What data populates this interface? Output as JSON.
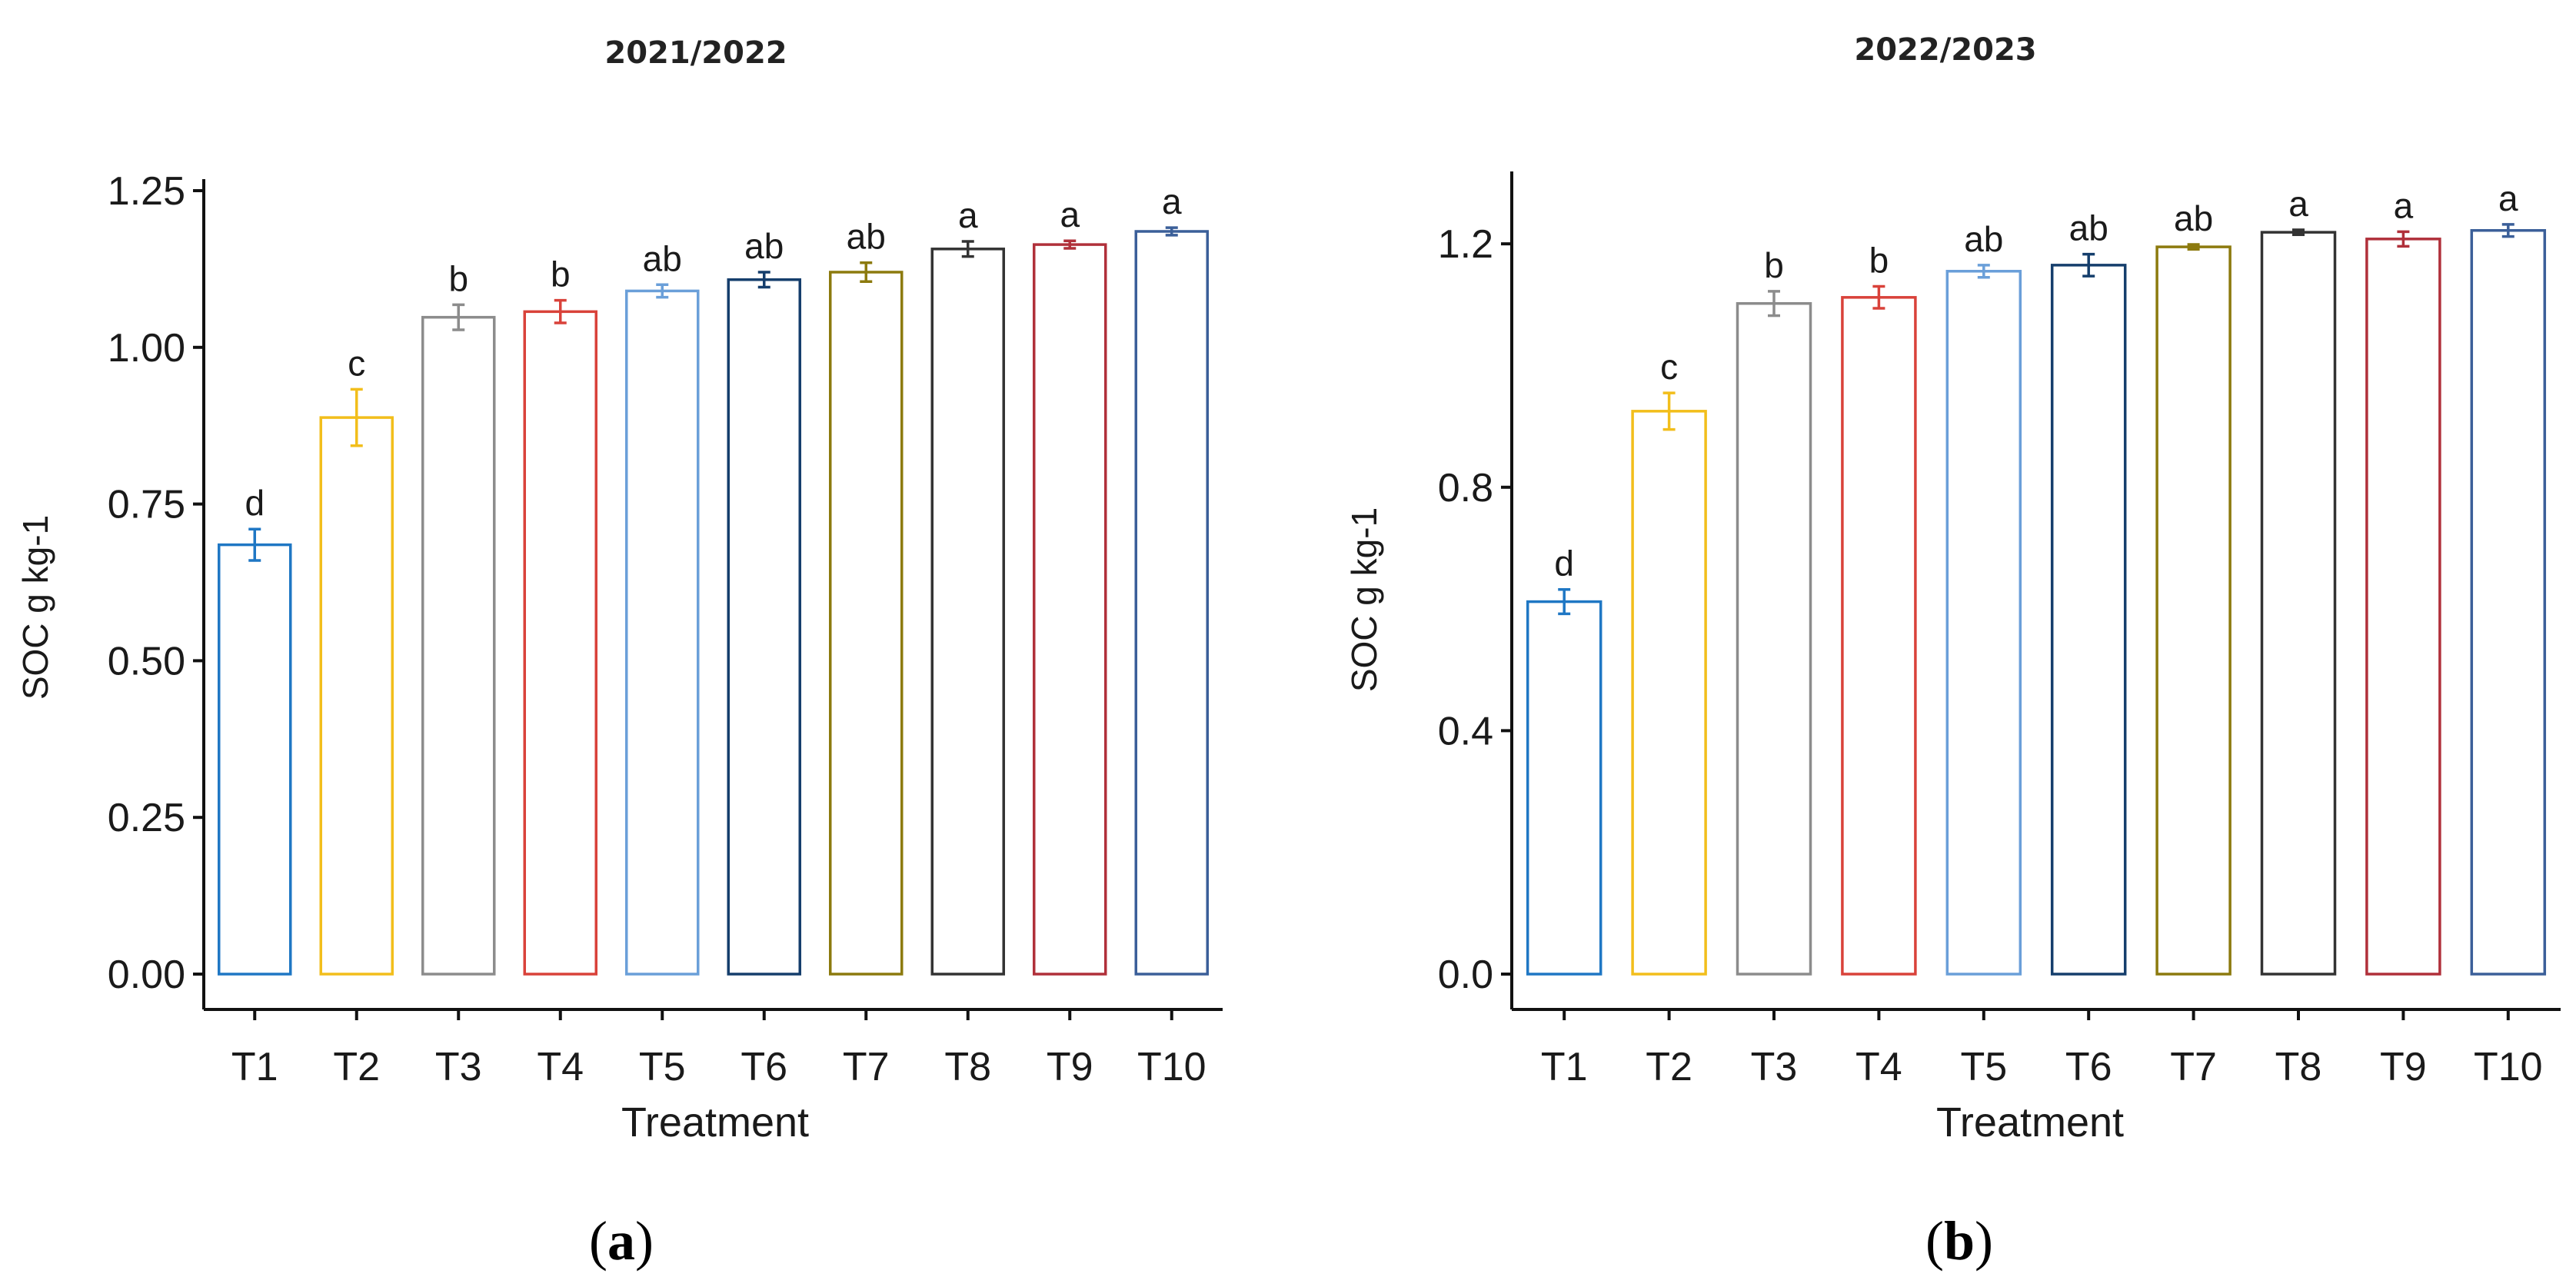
{
  "chart_data": [
    {
      "type": "bar",
      "title": "2021/2022",
      "panel_label_open": "(",
      "panel_label": "a",
      "panel_label_close": ")",
      "xlabel": "Treatment",
      "ylabel": "SOC g kg-1",
      "ylim": [
        0,
        1.25
      ],
      "yticks": [
        "0.00",
        "0.25",
        "0.50",
        "0.75",
        "1.00",
        "1.25"
      ],
      "categories": [
        "T1",
        "T2",
        "T3",
        "T4",
        "T5",
        "T6",
        "T7",
        "T8",
        "T9",
        "T10"
      ],
      "values": [
        0.685,
        0.888,
        1.048,
        1.057,
        1.09,
        1.108,
        1.12,
        1.157,
        1.164,
        1.185
      ],
      "errors": [
        0.025,
        0.045,
        0.02,
        0.018,
        0.01,
        0.012,
        0.015,
        0.012,
        0.006,
        0.006
      ],
      "letters": [
        "d",
        "c",
        "b",
        "b",
        "ab",
        "ab",
        "ab",
        "a",
        "a",
        "a"
      ]
    },
    {
      "type": "bar",
      "title": "2022/2023",
      "panel_label_open": "(",
      "panel_label": "b",
      "panel_label_close": ")",
      "xlabel": "Treatment",
      "ylabel": "SOC g kg-1",
      "ylim": [
        0,
        1.3
      ],
      "yticks": [
        "0.0",
        "0.4",
        "0.8",
        "1.2"
      ],
      "categories": [
        "T1",
        "T2",
        "T3",
        "T4",
        "T5",
        "T6",
        "T7",
        "T8",
        "T9",
        "T10"
      ],
      "values": [
        0.612,
        0.925,
        1.102,
        1.112,
        1.155,
        1.165,
        1.195,
        1.219,
        1.208,
        1.222
      ],
      "errors": [
        0.02,
        0.03,
        0.02,
        0.018,
        0.01,
        0.018,
        0.004,
        0.004,
        0.012,
        0.01
      ],
      "letters": [
        "d",
        "c",
        "b",
        "b",
        "ab",
        "ab",
        "ab",
        "a",
        "a",
        "a"
      ]
    }
  ],
  "colors": [
    "#1f77c4",
    "#f2be1b",
    "#8c8c8c",
    "#d9423a",
    "#6a9fd9",
    "#153e6c",
    "#8c7a0e",
    "#333333",
    "#b0303a",
    "#3b5f99"
  ]
}
